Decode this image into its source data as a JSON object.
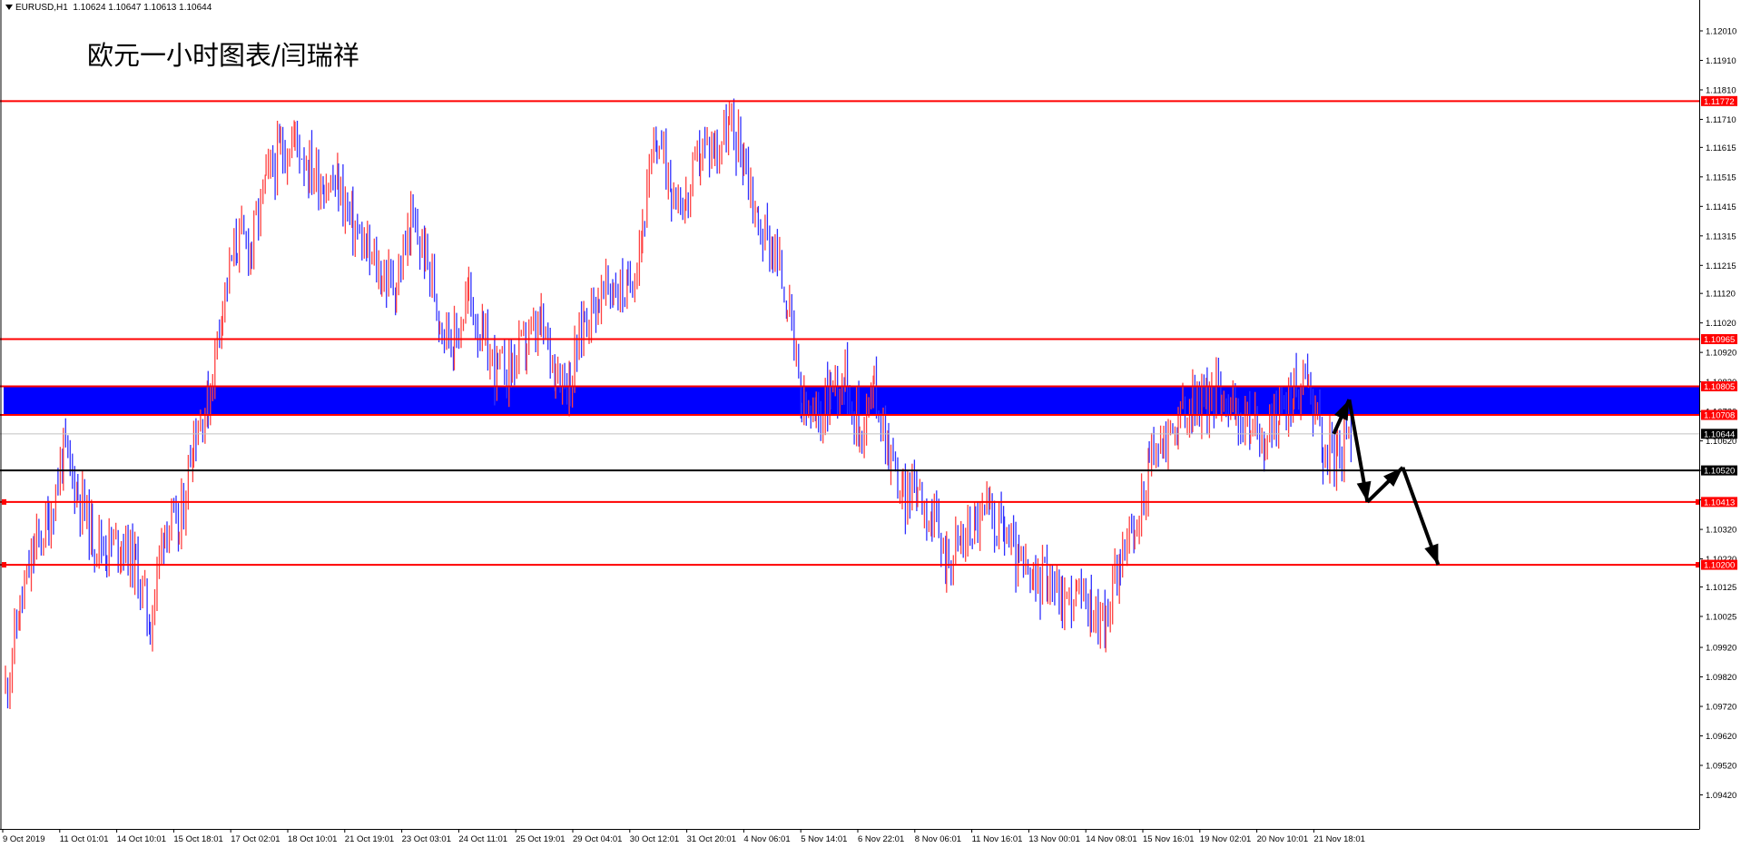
{
  "header": {
    "symbol": "EURUSD,H1",
    "ohlc": "1.10624 1.10647 1.10613 1.10644"
  },
  "title": "欧元一小时图表/闫瑞祥",
  "colors": {
    "bull": "#ff4040",
    "bear": "#3030ff",
    "level": "#ff0000",
    "zone": "#0000ff",
    "support": "#000000",
    "current": "#c0c0c0"
  },
  "chart_data": {
    "type": "candlestick",
    "symbol": "EURUSD",
    "timeframe": "H1",
    "ylim": [
      1.09385,
      1.12065
    ],
    "y_ticks": [
      "1.12010",
      "1.11910",
      "1.11810",
      "1.11710",
      "1.11615",
      "1.11515",
      "1.11415",
      "1.11315",
      "1.11215",
      "1.11120",
      "1.11020",
      "1.10920",
      "1.10820",
      "1.10720",
      "1.10620",
      "1.10520",
      "1.10420",
      "1.10320",
      "1.10220",
      "1.10125",
      "1.10025",
      "1.09920",
      "1.09820",
      "1.09720",
      "1.09620",
      "1.09520",
      "1.09420"
    ],
    "x_ticks": [
      "9 Oct 2019",
      "11 Oct 01:01",
      "14 Oct 10:01",
      "15 Oct 18:01",
      "17 Oct 02:01",
      "18 Oct 10:01",
      "21 Oct 19:01",
      "23 Oct 03:01",
      "24 Oct 11:01",
      "25 Oct 19:01",
      "29 Oct 04:01",
      "30 Oct 12:01",
      "31 Oct 20:01",
      "4 Nov 06:01",
      "5 Nov 14:01",
      "6 Nov 22:01",
      "8 Nov 06:01",
      "11 Nov 16:01",
      "13 Nov 00:01",
      "14 Nov 08:01",
      "15 Nov 16:01",
      "19 Nov 02:01",
      "20 Nov 10:01",
      "21 Nov 18:01"
    ],
    "levels": [
      {
        "label": "1.11772",
        "value": 1.11772,
        "type": "resistance"
      },
      {
        "label": "1.10965",
        "value": 1.10965,
        "type": "resistance"
      },
      {
        "label": "1.10805",
        "value": 1.10805,
        "type": "zone-top"
      },
      {
        "label": "1.10708",
        "value": 1.10708,
        "type": "zone-bottom"
      },
      {
        "label": "1.10520",
        "value": 1.1052,
        "type": "support"
      },
      {
        "label": "1.10413",
        "value": 1.10413,
        "type": "support"
      },
      {
        "label": "1.10200",
        "value": 1.102,
        "type": "support"
      }
    ],
    "current_price": {
      "label": "1.10644",
      "value": 1.10644
    },
    "close_path": [
      [
        "9 Oct 2019",
        1.0978
      ],
      [
        "10 Oct",
        1.1005
      ],
      [
        "10 Oct",
        1.1025
      ],
      [
        "11 Oct 01:01",
        1.1035
      ],
      [
        "11 Oct",
        1.1058
      ],
      [
        "11 Oct",
        1.1045
      ],
      [
        "14 Oct",
        1.103
      ],
      [
        "14 Oct 10:01",
        1.1026
      ],
      [
        "14 Oct",
        1.1028
      ],
      [
        "15 Oct",
        1.102
      ],
      [
        "15 Oct",
        1.1
      ],
      [
        "15 Oct 18:01",
        1.1035
      ],
      [
        "16 Oct",
        1.103
      ],
      [
        "16 Oct",
        1.1065
      ],
      [
        "16 Oct",
        1.1075
      ],
      [
        "17 Oct 02:01",
        1.111
      ],
      [
        "17 Oct",
        1.113
      ],
      [
        "17 Oct",
        1.1128
      ],
      [
        "18 Oct",
        1.115
      ],
      [
        "18 Oct",
        1.116
      ],
      [
        "18 Oct 10:01",
        1.1165
      ],
      [
        "18 Oct",
        1.1155
      ],
      [
        "21 Oct",
        1.115
      ],
      [
        "21 Oct 19:01",
        1.1148
      ],
      [
        "22 Oct",
        1.1135
      ],
      [
        "22 Oct",
        1.1125
      ],
      [
        "23 Oct",
        1.1118
      ],
      [
        "23 Oct 03:01",
        1.1115
      ],
      [
        "23 Oct",
        1.1135
      ],
      [
        "24 Oct",
        1.1125
      ],
      [
        "24 Oct",
        1.1105
      ],
      [
        "24 Oct 11:01",
        1.1095
      ],
      [
        "24 Oct",
        1.1112
      ],
      [
        "25 Oct",
        1.1095
      ],
      [
        "25 Oct",
        1.1085
      ],
      [
        "25 Oct 19:01",
        1.1088
      ],
      [
        "28 Oct",
        1.1095
      ],
      [
        "28 Oct",
        1.11
      ],
      [
        "29 Oct",
        1.1088
      ],
      [
        "29 Oct 04:01",
        1.1082
      ],
      [
        "29 Oct",
        1.1105
      ],
      [
        "30 Oct",
        1.111
      ],
      [
        "30 Oct",
        1.1115
      ],
      [
        "30 Oct 12:01",
        1.1112
      ],
      [
        "31 Oct",
        1.1135
      ],
      [
        "31 Oct",
        1.1165
      ],
      [
        "31 Oct",
        1.115
      ],
      [
        "31 Oct 20:01",
        1.1142
      ],
      [
        "1 Nov",
        1.116
      ],
      [
        "1 Nov",
        1.1162
      ],
      [
        "4 Nov",
        1.1168
      ],
      [
        "4 Nov 06:01",
        1.116
      ],
      [
        "4 Nov",
        1.1135
      ],
      [
        "5 Nov",
        1.1128
      ],
      [
        "5 Nov",
        1.111
      ],
      [
        "5 Nov 14:01",
        1.1072
      ],
      [
        "5 Nov",
        1.1068
      ],
      [
        "6 Nov",
        1.108
      ],
      [
        "6 Nov",
        1.1085
      ],
      [
        "6 Nov 22:01",
        1.1065
      ],
      [
        "7 Nov",
        1.108
      ],
      [
        "7 Nov",
        1.106
      ],
      [
        "7 Nov",
        1.1042
      ],
      [
        "8 Nov 06:01",
        1.1048
      ],
      [
        "8 Nov",
        1.1035
      ],
      [
        "8 Nov",
        1.1022
      ],
      [
        "11 Nov",
        1.1028
      ],
      [
        "11 Nov 16:01",
        1.1035
      ],
      [
        "12 Nov",
        1.1038
      ],
      [
        "12 Nov",
        1.1032
      ],
      [
        "12 Nov",
        1.102
      ],
      [
        "13 Nov 00:01",
        1.1012
      ],
      [
        "13 Nov",
        1.1018
      ],
      [
        "13 Nov",
        1.1008
      ],
      [
        "14 Nov",
        1.101
      ],
      [
        "14 Nov 08:01",
        1.1005
      ],
      [
        "14 Nov",
        1.1
      ],
      [
        "15 Nov",
        1.1025
      ],
      [
        "15 Nov",
        1.1028
      ],
      [
        "15 Nov 16:01",
        1.1055
      ],
      [
        "18 Nov",
        1.1062
      ],
      [
        "18 Nov",
        1.1068
      ],
      [
        "18 Nov",
        1.1075
      ],
      [
        "19 Nov 02:01",
        1.1075
      ],
      [
        "19 Nov",
        1.108
      ],
      [
        "19 Nov",
        1.107
      ],
      [
        "20 Nov",
        1.1068
      ],
      [
        "20 Nov 10:01",
        1.1062
      ],
      [
        "20 Nov",
        1.1072
      ],
      [
        "20 Nov",
        1.1078
      ],
      [
        "21 Nov",
        1.1085
      ],
      [
        "21 Nov",
        1.106
      ],
      [
        "21 Nov 18:01",
        1.1056
      ],
      [
        "21 Nov",
        1.10644
      ]
    ],
    "projection": [
      [
        "21 Nov",
        1.10644
      ],
      [
        "22 Nov",
        1.1076
      ],
      [
        "22 Nov",
        1.10413
      ],
      [
        "22 Nov",
        1.1053
      ],
      [
        "25 Nov",
        1.102
      ]
    ]
  }
}
